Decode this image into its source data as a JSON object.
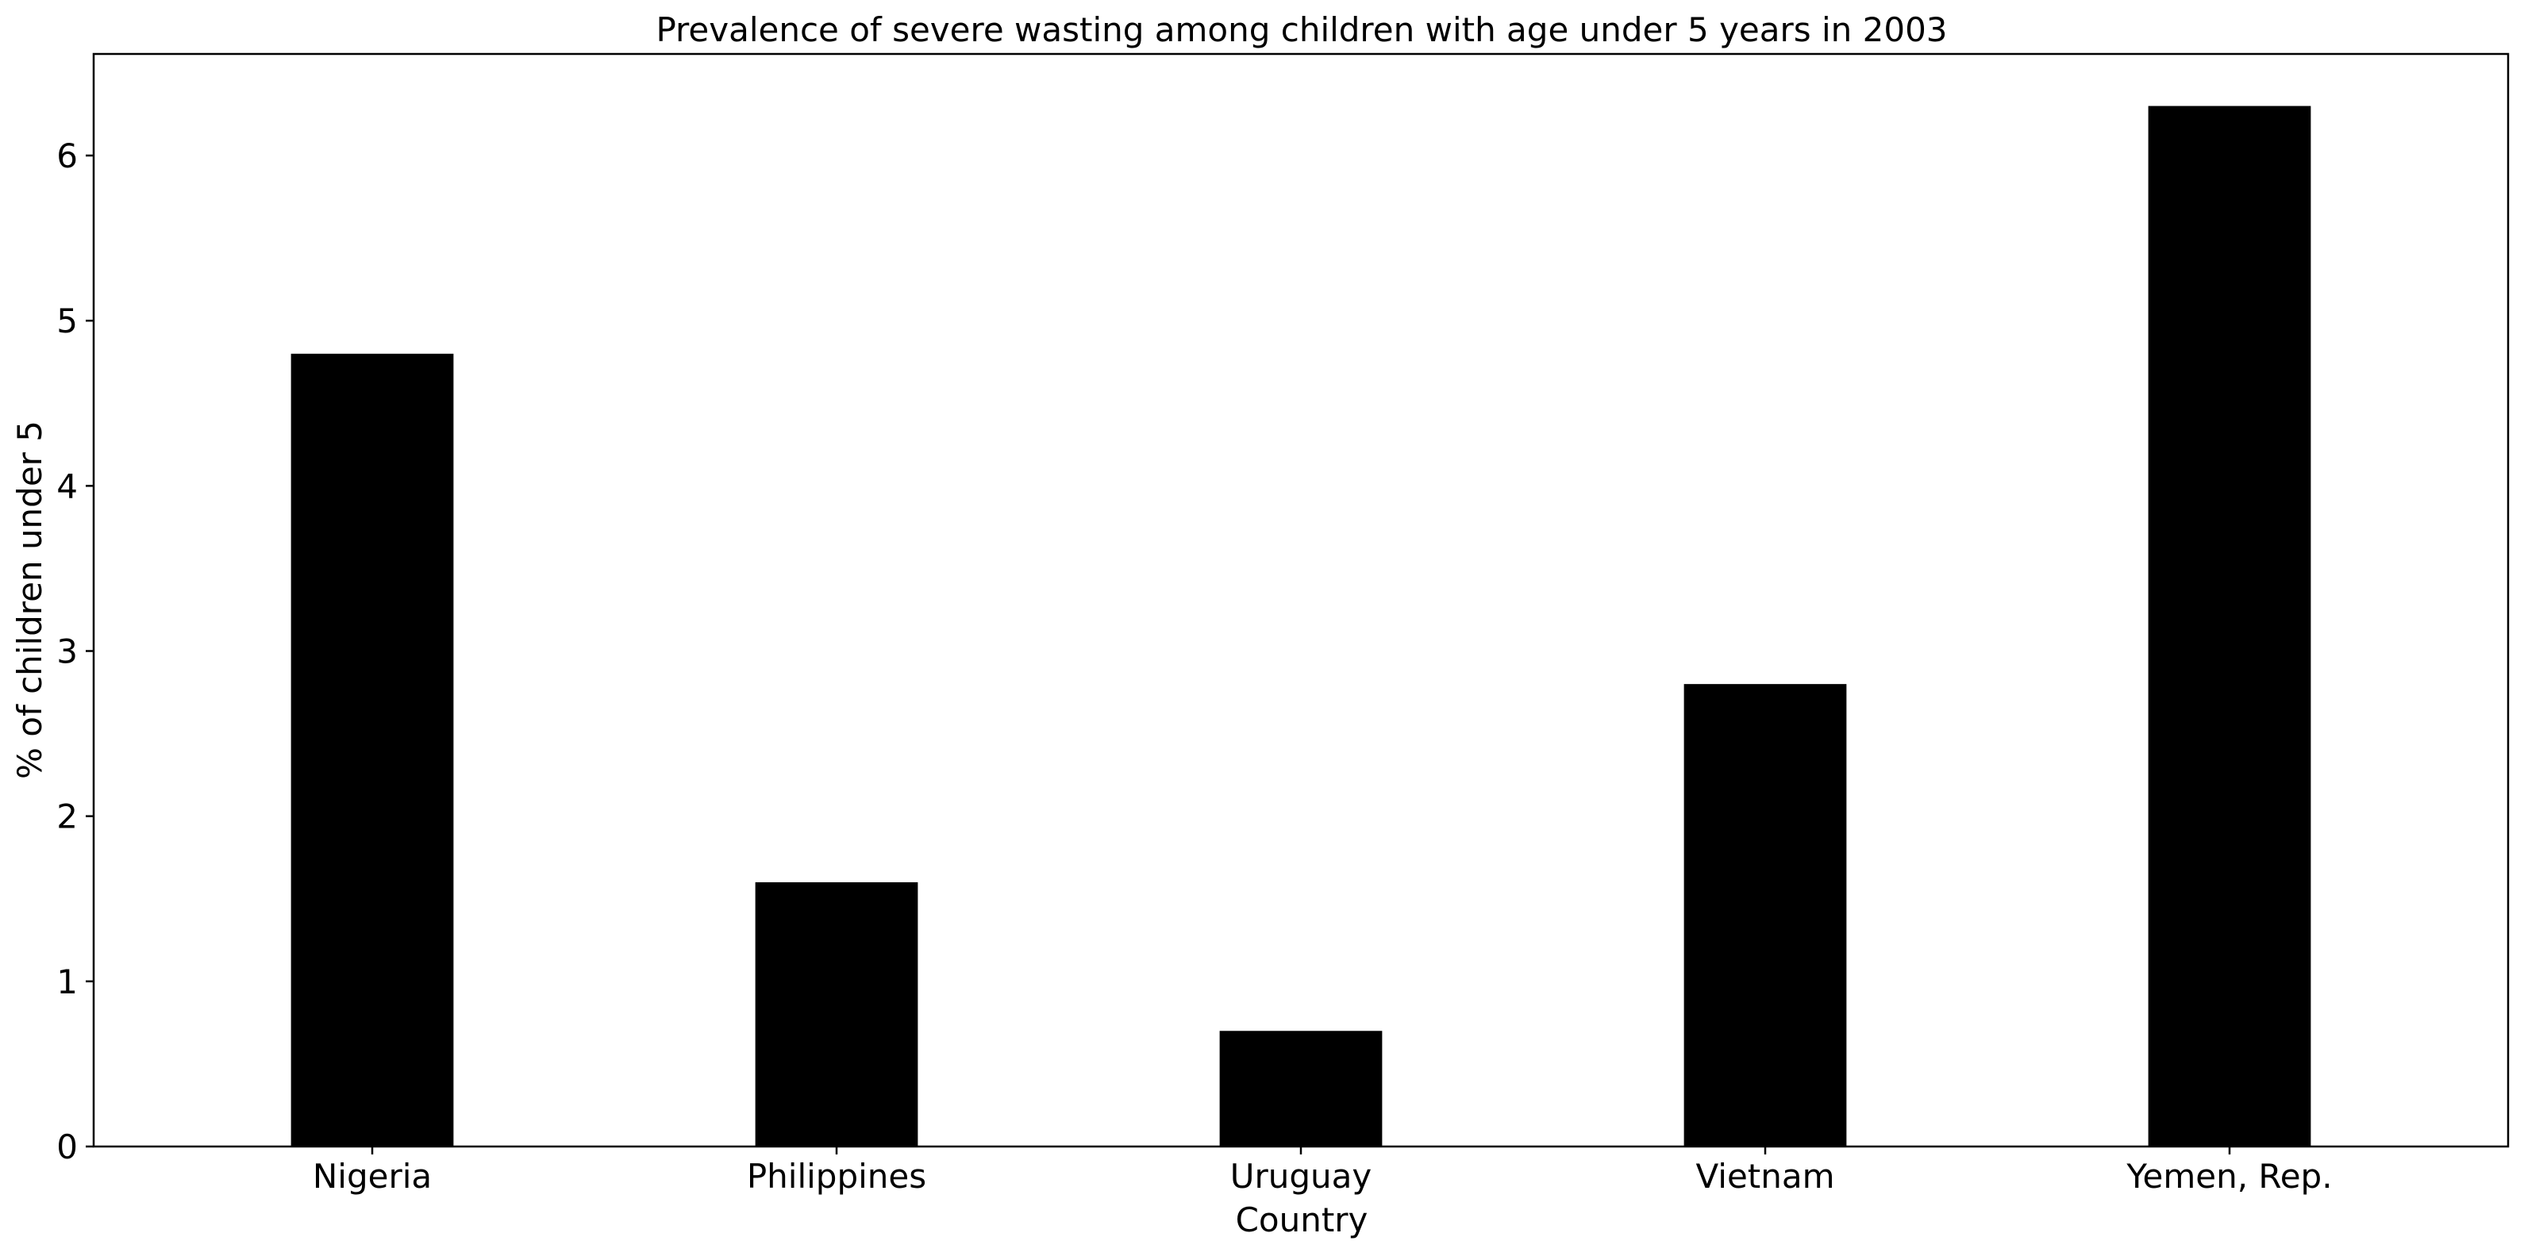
{
  "chart_data": {
    "type": "bar",
    "title": "Prevalence of severe wasting among children with age under 5 years in 2003",
    "xlabel": "Country",
    "ylabel": "% of children under 5",
    "categories": [
      "Nigeria",
      "Philippines",
      "Uruguay",
      "Vietnam",
      "Yemen, Rep."
    ],
    "values": [
      4.8,
      1.6,
      0.7,
      2.8,
      6.3
    ],
    "ylim": [
      0,
      6.615
    ],
    "yticks": [
      0,
      1,
      2,
      3,
      4,
      5,
      6
    ],
    "grid": false,
    "legend": "none",
    "bar_color": "#000000"
  }
}
